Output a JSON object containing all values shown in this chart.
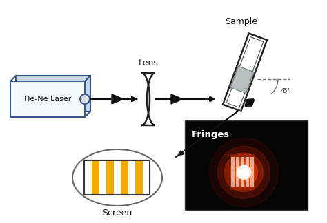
{
  "laser_box_color": "#eef3f8",
  "laser_box_edge": "#3a5a8c",
  "laser_label": "He-Ne Laser",
  "lens_label": "Lens",
  "sample_label": "Sample",
  "screen_label": "Screen",
  "fringes_label": "Fringes",
  "angle_label": "45°",
  "stripe_colors": [
    "#ffffff",
    "#f5a800",
    "#ffffff",
    "#f5a800",
    "#ffffff",
    "#f5a800",
    "#ffffff",
    "#f5a800",
    "#ffffff"
  ],
  "arrow_color": "#111111",
  "sample_film_color": "#b8bfbf",
  "dashed_color": "#777777",
  "label_fontsize": 9,
  "small_fontsize": 6
}
